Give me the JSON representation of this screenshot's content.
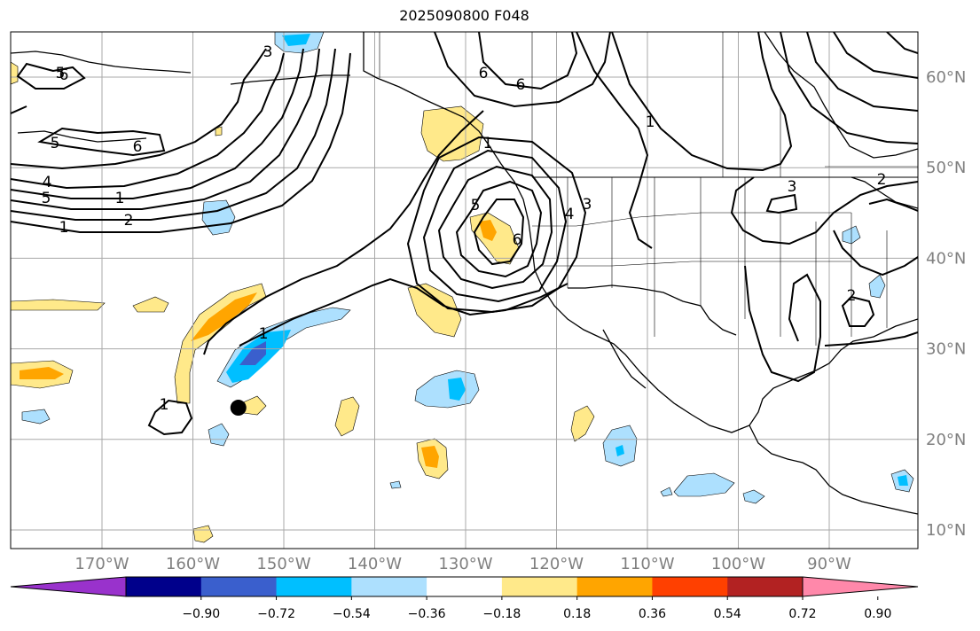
{
  "title": "2025090800 F048",
  "map": {
    "projection": "lat-lon",
    "longitude_labels": [
      "170°W",
      "160°W",
      "150°W",
      "140°W",
      "130°W",
      "120°W",
      "110°W",
      "100°W",
      "90°W"
    ],
    "latitude_labels": [
      "60°N",
      "50°N",
      "40°N",
      "30°N",
      "20°N",
      "10°N"
    ],
    "grid": true,
    "marker": {
      "label": "",
      "lon": -155,
      "lat": 23.5,
      "shape": "black-circle"
    },
    "contour_labels": [
      "6",
      "5",
      "6",
      "4",
      "5",
      "1",
      "2",
      "1",
      "3",
      "5",
      "6",
      "4",
      "3",
      "6",
      "1",
      "3",
      "2",
      "2",
      "1",
      "1",
      "1",
      "6",
      "5"
    ]
  },
  "colorbar": {
    "ticks": [
      "−0.90",
      "−0.72",
      "−0.54",
      "−0.36",
      "−0.18",
      "0.18",
      "0.36",
      "0.54",
      "0.72",
      "0.90"
    ],
    "colors": [
      "#9932cc",
      "#00008b",
      "#3a5fcd",
      "#00bfff",
      "#ade0fe",
      "#ffffff",
      "#ffe98a",
      "#ffa500",
      "#ff4000",
      "#b22222",
      "#ff88aa"
    ]
  }
}
